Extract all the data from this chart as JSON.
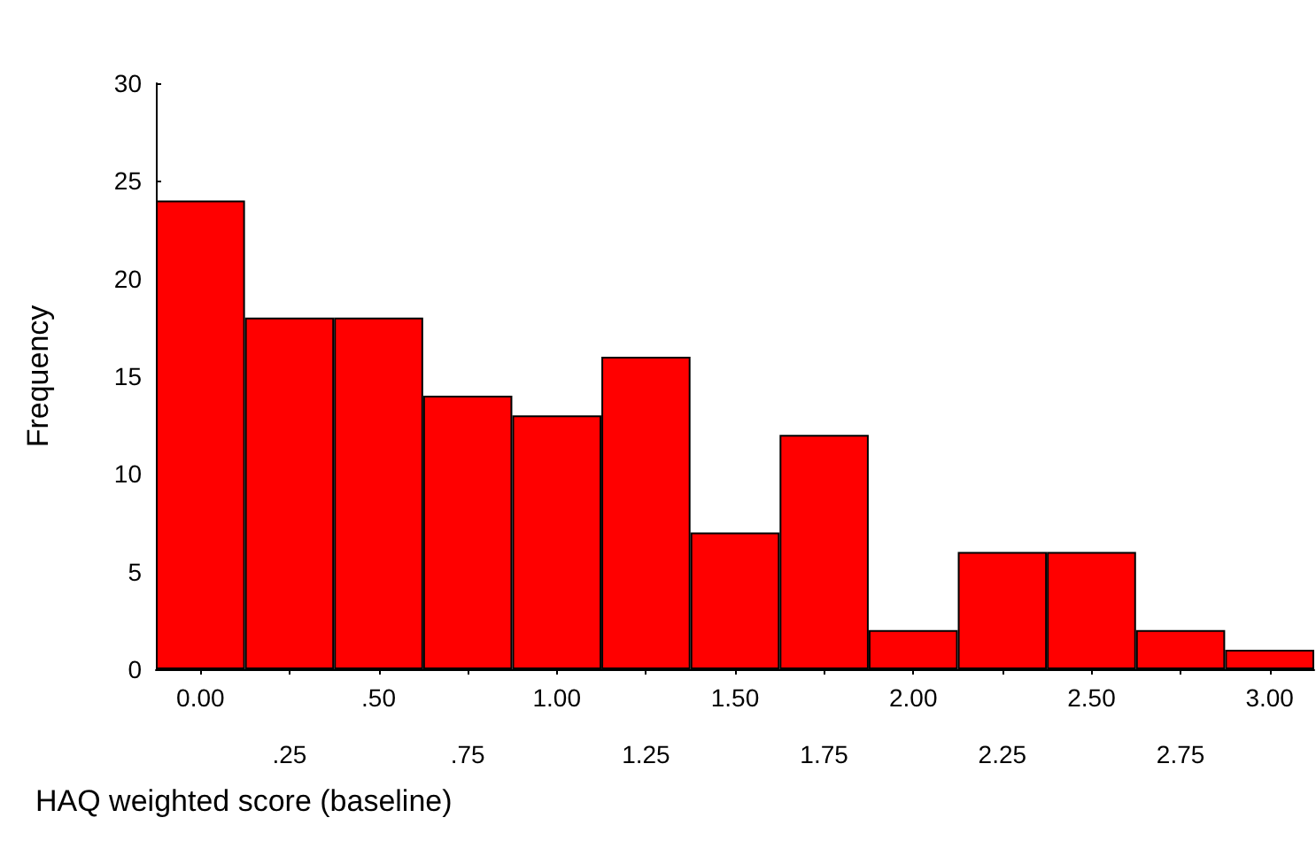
{
  "chart_data": {
    "type": "bar",
    "xlabel": "HAQ weighted score (baseline)",
    "ylabel": "Frequency",
    "categories": [
      "0.00",
      ".25",
      ".50",
      ".75",
      "1.00",
      "1.25",
      "1.50",
      "1.75",
      "2.00",
      "2.25",
      "2.50",
      "2.75",
      "3.00"
    ],
    "values": [
      24,
      18,
      18,
      14,
      13,
      16,
      7,
      12,
      2,
      6,
      6,
      2,
      1
    ],
    "color": "#ff0000",
    "ylim": [
      0,
      30
    ],
    "yticks": [
      0,
      5,
      10,
      15,
      20,
      25,
      30
    ],
    "grid": false
  }
}
